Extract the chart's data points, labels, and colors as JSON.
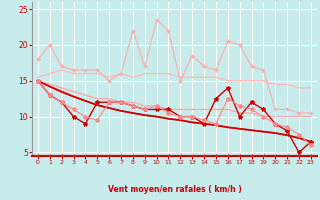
{
  "background_color": "#c8ecec",
  "grid_color": "#ffffff",
  "xlabel": "Vent moyen/en rafales ( km/h )",
  "xlabel_color": "#cc0000",
  "tick_color": "#cc0000",
  "arrow_color": "#cc3333",
  "xlim": [
    -0.5,
    23.5
  ],
  "ylim": [
    4.5,
    26
  ],
  "yticks": [
    5,
    10,
    15,
    20,
    25
  ],
  "xticks": [
    0,
    1,
    2,
    3,
    4,
    5,
    6,
    7,
    8,
    9,
    10,
    11,
    12,
    13,
    14,
    15,
    16,
    17,
    18,
    19,
    20,
    21,
    22,
    23
  ],
  "series": [
    {
      "x": [
        0,
        1,
        2,
        3,
        4,
        5,
        6,
        7,
        8,
        9,
        10,
        11,
        12,
        13,
        14,
        15,
        16,
        17,
        18,
        19,
        20,
        21,
        22,
        23
      ],
      "y": [
        18,
        20,
        17,
        16.5,
        16.5,
        16.5,
        15,
        16,
        22,
        17,
        23.5,
        22,
        15,
        18.5,
        17,
        16.5,
        20.5,
        20,
        17,
        16.5,
        11,
        11,
        10.5,
        10.5
      ],
      "color": "#ffaaaa",
      "lw": 0.8,
      "marker": "+",
      "ms": 3
    },
    {
      "x": [
        0,
        1,
        2,
        3,
        4,
        5,
        6,
        7,
        8,
        9,
        10,
        11,
        12,
        13,
        14,
        15,
        16,
        17,
        18,
        19,
        20,
        21,
        22,
        23
      ],
      "y": [
        15.5,
        16,
        16.5,
        16,
        16,
        16,
        15.5,
        16,
        15.5,
        16,
        16,
        16,
        15.5,
        15.5,
        15.5,
        15.5,
        15,
        15,
        15,
        15,
        14.5,
        14.5,
        14,
        14
      ],
      "color": "#ffbbbb",
      "lw": 1.0,
      "marker": null,
      "ms": 0
    },
    {
      "x": [
        0,
        1,
        2,
        3,
        4,
        5,
        6,
        7,
        8,
        9,
        10,
        11,
        12,
        13,
        14,
        15,
        16,
        17,
        18,
        19,
        20,
        21,
        22,
        23
      ],
      "y": [
        15,
        13,
        12,
        10,
        9,
        12,
        12,
        12,
        11.5,
        11,
        11,
        11,
        10,
        10,
        9,
        12.5,
        14,
        10,
        12,
        11,
        9,
        8,
        5,
        6.5
      ],
      "color": "#cc0000",
      "lw": 1.0,
      "marker": "*",
      "ms": 3
    },
    {
      "x": [
        0,
        1,
        2,
        3,
        4,
        5,
        6,
        7,
        8,
        9,
        10,
        11,
        12,
        13,
        14,
        15,
        16,
        17,
        18,
        19,
        20,
        21,
        22,
        23
      ],
      "y": [
        15,
        14.2,
        13.4,
        12.8,
        12.2,
        11.6,
        11.2,
        10.8,
        10.5,
        10.2,
        10.0,
        9.7,
        9.5,
        9.2,
        9.0,
        8.8,
        8.5,
        8.3,
        8.1,
        7.9,
        7.7,
        7.4,
        7.0,
        6.5
      ],
      "color": "#ff4444",
      "lw": 1.2,
      "marker": null,
      "ms": 0
    },
    {
      "x": [
        0,
        1,
        2,
        3,
        4,
        5,
        6,
        7,
        8,
        9,
        10,
        11,
        12,
        13,
        14,
        15,
        16,
        17,
        18,
        19,
        20,
        21,
        22,
        23
      ],
      "y": [
        15,
        14.5,
        14,
        13.5,
        13,
        12.5,
        12.5,
        12,
        12,
        11.5,
        11.5,
        11,
        11,
        11,
        11,
        11,
        11,
        10.5,
        10.5,
        10,
        10,
        10,
        10,
        10
      ],
      "color": "#ffaaaa",
      "lw": 1.0,
      "marker": null,
      "ms": 0
    },
    {
      "x": [
        0,
        1,
        2,
        3,
        4,
        5,
        6,
        7,
        8,
        9,
        10,
        11,
        12,
        13,
        14,
        15,
        16,
        17,
        18,
        19,
        20,
        21,
        22,
        23
      ],
      "y": [
        15,
        13,
        12,
        11,
        10,
        9.5,
        12,
        12,
        11.5,
        11,
        11.5,
        10.5,
        10,
        10,
        9.5,
        9,
        12.5,
        11.5,
        11,
        10,
        9,
        8.5,
        7.5,
        6
      ],
      "color": "#ff8888",
      "lw": 0.8,
      "marker": "D",
      "ms": 2
    },
    {
      "x": [
        0,
        1,
        2,
        3,
        4,
        5,
        6,
        7,
        8,
        9,
        10,
        11,
        12,
        13,
        14,
        15,
        16,
        17,
        18,
        19,
        20,
        21,
        22,
        23
      ],
      "y": [
        15,
        14.2,
        13.5,
        12.8,
        12.2,
        11.6,
        11.2,
        10.8,
        10.5,
        10.2,
        10.0,
        9.7,
        9.5,
        9.2,
        9.0,
        8.8,
        8.5,
        8.3,
        8.1,
        7.9,
        7.7,
        7.4,
        7.0,
        6.5
      ],
      "color": "#cc0000",
      "lw": 1.2,
      "marker": null,
      "ms": 0
    }
  ]
}
